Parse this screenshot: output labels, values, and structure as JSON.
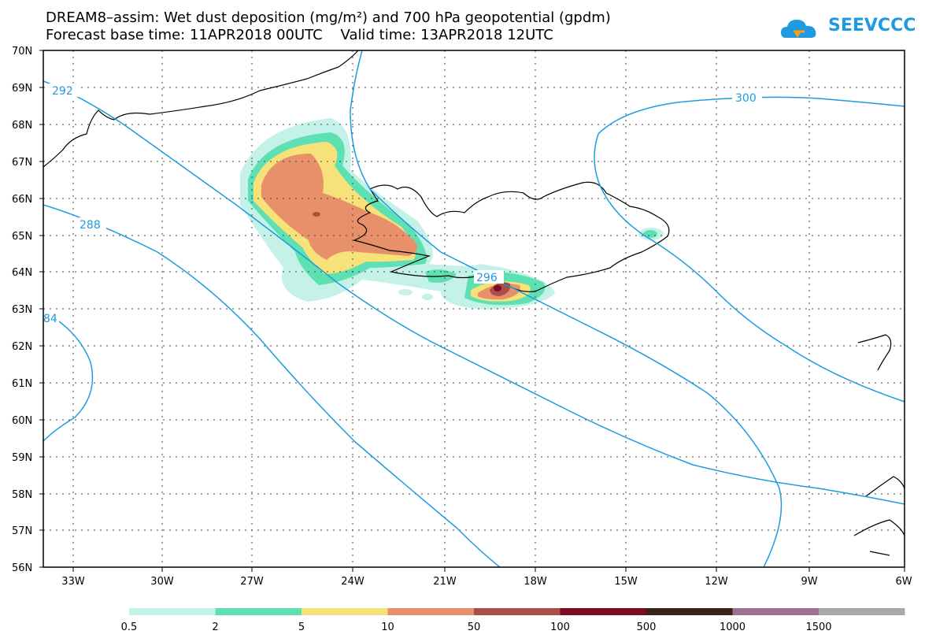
{
  "title": {
    "line1": "DREAM8–assim: Wet dust deposition (mg/m²) and 700 hPa geopotential (gpdm)",
    "line2": "Forecast base time: 11APR2018 00UTC    Valid time: 13APR2018 12UTC"
  },
  "logo": {
    "text": "SEEVCCC",
    "icon": "cloud-icon",
    "color": "#1e9be0"
  },
  "map": {
    "lat_ticks": [
      "70N",
      "69N",
      "68N",
      "67N",
      "66N",
      "65N",
      "64N",
      "63N",
      "62N",
      "61N",
      "60N",
      "59N",
      "58N",
      "57N",
      "56N"
    ],
    "lon_ticks": [
      "33W",
      "30W",
      "27W",
      "24W",
      "21W",
      "18W",
      "15W",
      "12W",
      "9W",
      "6W"
    ],
    "contour_color": "#1e9be0",
    "contour_labels": [
      "292",
      "288",
      "84",
      "296",
      "300"
    ],
    "coast_color": "#000000",
    "grid": "dotted"
  },
  "colorbar": {
    "labels": [
      "0.5",
      "2",
      "5",
      "10",
      "50",
      "100",
      "500",
      "1000",
      "1500"
    ],
    "colors": [
      "#c4f2e8",
      "#5ee0b3",
      "#f7e27a",
      "#e8906a",
      "#a85048",
      "#7a0b22",
      "#3a2418",
      "#a07090",
      "#a8a8a8"
    ]
  }
}
